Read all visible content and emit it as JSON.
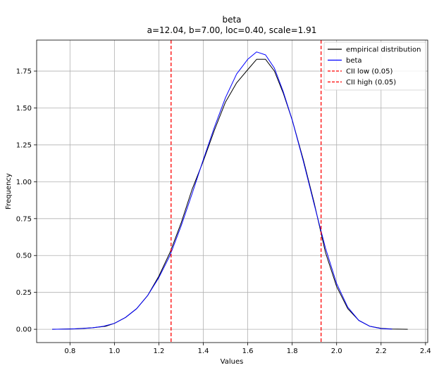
{
  "chart_data": {
    "type": "line",
    "title": "beta",
    "subtitle": "a=12.04, b=7.00, loc=0.40, scale=1.91",
    "xlabel": "Values",
    "ylabel": "Frequency",
    "xlim": [
      0.65,
      2.41
    ],
    "ylim": [
      -0.09,
      1.96
    ],
    "xticks": [
      0.8,
      1.0,
      1.2,
      1.4,
      1.6,
      1.8,
      2.0,
      2.2,
      2.4
    ],
    "xtick_labels": [
      "0.8",
      "1.0",
      "1.2",
      "1.4",
      "1.6",
      "1.8",
      "2.0",
      "2.2",
      "2.4"
    ],
    "yticks": [
      0.0,
      0.25,
      0.5,
      0.75,
      1.0,
      1.25,
      1.5,
      1.75
    ],
    "ytick_labels": [
      "0.00",
      "0.25",
      "0.50",
      "0.75",
      "1.00",
      "1.25",
      "1.50",
      "1.75"
    ],
    "grid": true,
    "legend_position": "top-right",
    "series": [
      {
        "name": "empirical distribution",
        "kind": "line",
        "color": "#000000",
        "x": [
          0.72,
          0.82,
          0.9,
          0.96,
          1.0,
          1.05,
          1.1,
          1.15,
          1.2,
          1.25,
          1.3,
          1.35,
          1.4,
          1.45,
          1.5,
          1.55,
          1.6,
          1.64,
          1.68,
          1.72,
          1.76,
          1.8,
          1.85,
          1.9,
          1.95,
          2.0,
          2.05,
          2.1,
          2.15,
          2.2,
          2.25,
          2.32
        ],
        "y": [
          0.0,
          0.003,
          0.01,
          0.02,
          0.04,
          0.08,
          0.14,
          0.23,
          0.36,
          0.52,
          0.72,
          0.95,
          1.14,
          1.35,
          1.54,
          1.67,
          1.76,
          1.83,
          1.83,
          1.75,
          1.6,
          1.42,
          1.15,
          0.85,
          0.52,
          0.29,
          0.14,
          0.06,
          0.02,
          0.007,
          0.002,
          0.0
        ]
      },
      {
        "name": "beta",
        "kind": "line",
        "color": "#0000ff",
        "x": [
          0.72,
          0.8,
          0.85,
          0.9,
          0.95,
          1.0,
          1.05,
          1.1,
          1.15,
          1.2,
          1.25,
          1.3,
          1.35,
          1.4,
          1.45,
          1.5,
          1.55,
          1.6,
          1.64,
          1.68,
          1.72,
          1.76,
          1.8,
          1.85,
          1.9,
          1.95,
          2.0,
          2.05,
          2.1,
          2.15,
          2.2,
          2.25
        ],
        "y": [
          0.0,
          0.002,
          0.005,
          0.01,
          0.02,
          0.04,
          0.08,
          0.14,
          0.23,
          0.35,
          0.5,
          0.7,
          0.92,
          1.15,
          1.37,
          1.57,
          1.73,
          1.83,
          1.88,
          1.86,
          1.77,
          1.61,
          1.42,
          1.14,
          0.84,
          0.55,
          0.31,
          0.15,
          0.06,
          0.02,
          0.005,
          0.001
        ]
      },
      {
        "name": "CII low (0.05)",
        "kind": "vline",
        "color": "#ff0000",
        "dash": true,
        "value": 1.255
      },
      {
        "name": "CII high (0.05)",
        "kind": "vline",
        "color": "#ff0000",
        "dash": true,
        "value": 1.93
      }
    ]
  }
}
